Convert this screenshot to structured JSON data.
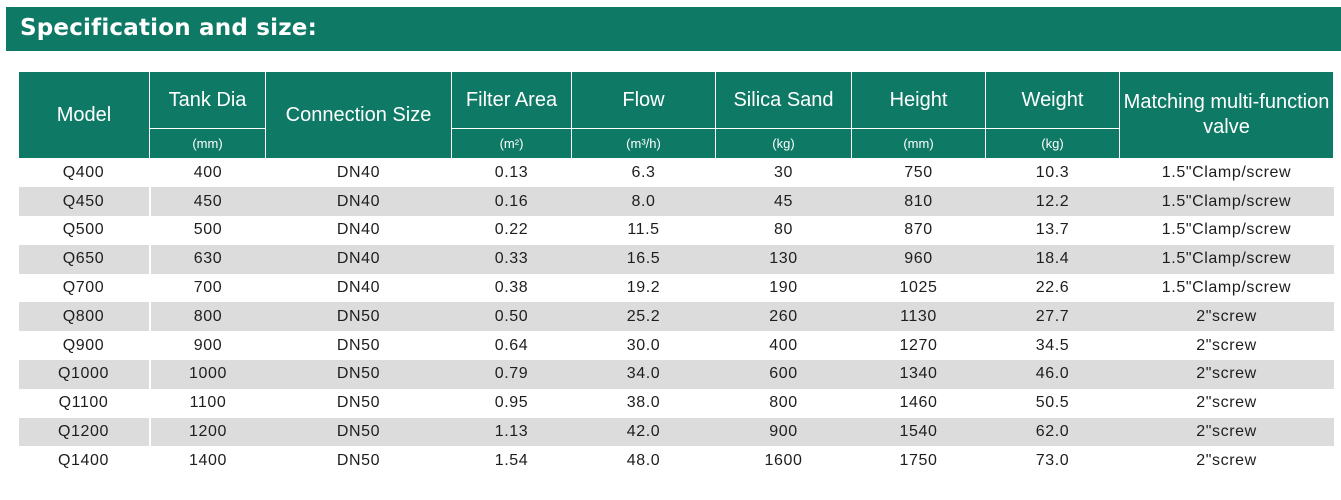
{
  "banner": {
    "title": "Specification and size:"
  },
  "table": {
    "headers": {
      "model": "Model",
      "tank_dia": "Tank Dia",
      "tank_dia_unit": "(mm)",
      "connection": "Connection Size",
      "filter_area": "Filter Area",
      "filter_area_unit": "(m²)",
      "flow": "Flow",
      "flow_unit": "(m³/h)",
      "silica_sand": "Silica Sand",
      "silica_sand_unit": "(kg)",
      "height": "Height",
      "height_unit": "(mm)",
      "weight": "Weight",
      "weight_unit": "(kg)",
      "valve": "Matching multi-function valve"
    },
    "rows": [
      [
        "Q400",
        "400",
        "DN40",
        "0.13",
        "6.3",
        "30",
        "750",
        "10.3",
        "1.5\"Clamp/screw"
      ],
      [
        "Q450",
        "450",
        "DN40",
        "0.16",
        "8.0",
        "45",
        "810",
        "12.2",
        "1.5\"Clamp/screw"
      ],
      [
        "Q500",
        "500",
        "DN40",
        "0.22",
        "11.5",
        "80",
        "870",
        "13.7",
        "1.5\"Clamp/screw"
      ],
      [
        "Q650",
        "630",
        "DN40",
        "0.33",
        "16.5",
        "130",
        "960",
        "18.4",
        "1.5\"Clamp/screw"
      ],
      [
        "Q700",
        "700",
        "DN40",
        "0.38",
        "19.2",
        "190",
        "1025",
        "22.6",
        "1.5\"Clamp/screw"
      ],
      [
        "Q800",
        "800",
        "DN50",
        "0.50",
        "25.2",
        "260",
        "1130",
        "27.7",
        "2\"screw"
      ],
      [
        "Q900",
        "900",
        "DN50",
        "0.64",
        "30.0",
        "400",
        "1270",
        "34.5",
        "2\"screw"
      ],
      [
        "Q1000",
        "1000",
        "DN50",
        "0.79",
        "34.0",
        "600",
        "1340",
        "46.0",
        "2\"screw"
      ],
      [
        "Q1100",
        "1100",
        "DN50",
        "0.95",
        "38.0",
        "800",
        "1460",
        "50.5",
        "2\"screw"
      ],
      [
        "Q1200",
        "1200",
        "DN50",
        "1.13",
        "42.0",
        "900",
        "1540",
        "62.0",
        "2\"screw"
      ],
      [
        "Q1400",
        "1400",
        "DN50",
        "1.54",
        "48.0",
        "1600",
        "1750",
        "73.0",
        "2\"screw"
      ]
    ]
  },
  "colors": {
    "header_bg": "#0e7a66",
    "row_shade": "#dcdcdc"
  }
}
